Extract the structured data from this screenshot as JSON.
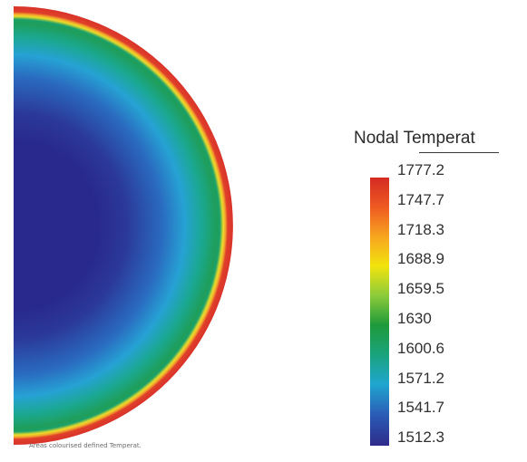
{
  "figure": {
    "quantity": "Nodal Temperat",
    "caption": "Areas colourised defined Temperat."
  },
  "legend": {
    "title": "Nodal Temperat",
    "ticks": [
      "1777.2",
      "1747.7",
      "1718.3",
      "1688.9",
      "1659.5",
      "1630",
      "1600.6",
      "1571.2",
      "1541.7",
      "1512.3"
    ],
    "colors": [
      "#d42a22",
      "#ef5a22",
      "#f7a51f",
      "#f2e40e",
      "#8ccb3a",
      "#1e9a3a",
      "#1aa37d",
      "#1fa6cf",
      "#2a5fb7",
      "#2e2a8a"
    ]
  },
  "field": {
    "min": 1512.3,
    "max": 1777.2,
    "profile_colors": [
      "#29288c",
      "#29288c",
      "#2b3a9a",
      "#2a6cc0",
      "#26a2d4",
      "#1aa892",
      "#1f9e5a",
      "#1aa06a",
      "#ecdc2a",
      "#f2a52c",
      "#e0402a",
      "#d8322a"
    ]
  }
}
